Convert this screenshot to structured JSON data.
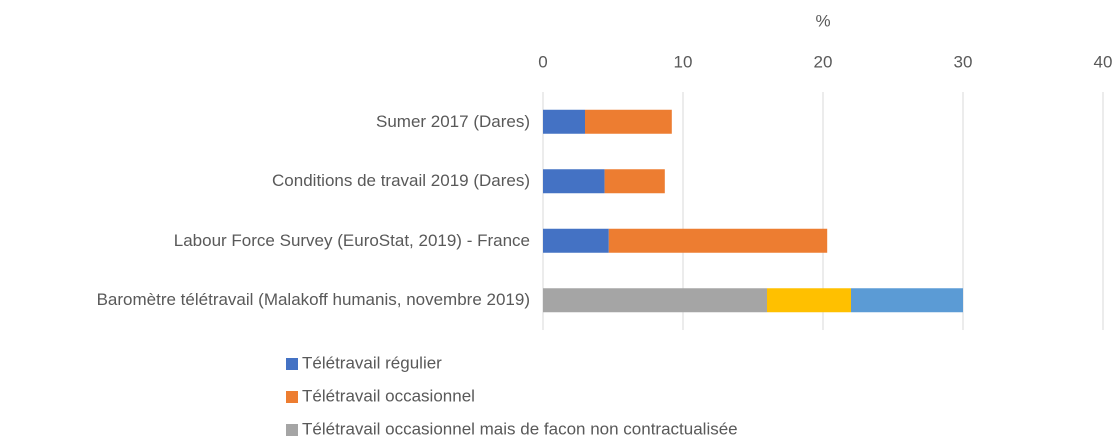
{
  "chart_data": {
    "type": "bar",
    "orientation": "horizontal",
    "stacked": true,
    "x_axis_label": "%",
    "categories": [
      "Sumer 2017 (Dares)",
      "Conditions de travail 2019 (Dares)",
      "Labour Force Survey (EuroStat, 2019) - France",
      "Baromètre télétravail (Malakoff humanis, novembre 2019)"
    ],
    "series": [
      {
        "name": "Télétravail régulier",
        "color": "#4472c4",
        "values": [
          3.0,
          4.4,
          4.7,
          null
        ]
      },
      {
        "name": "Télétravail occasionnel",
        "color": "#ed7d31",
        "values": [
          6.2,
          4.3,
          15.6,
          null
        ]
      },
      {
        "name": "Télétravail occasionnel mais de facon non contractualisée",
        "color": "#a5a5a5",
        "values": [
          null,
          null,
          null,
          16
        ]
      },
      {
        "color": "#ffc000",
        "values": [
          null,
          null,
          null,
          6
        ]
      },
      {
        "color": "#5b9bd5",
        "values": [
          null,
          null,
          null,
          8
        ]
      }
    ],
    "xlim": [
      0,
      40
    ],
    "xticks": [
      0,
      10,
      20,
      30,
      40
    ],
    "x_axis_position": "top",
    "grid": true
  }
}
